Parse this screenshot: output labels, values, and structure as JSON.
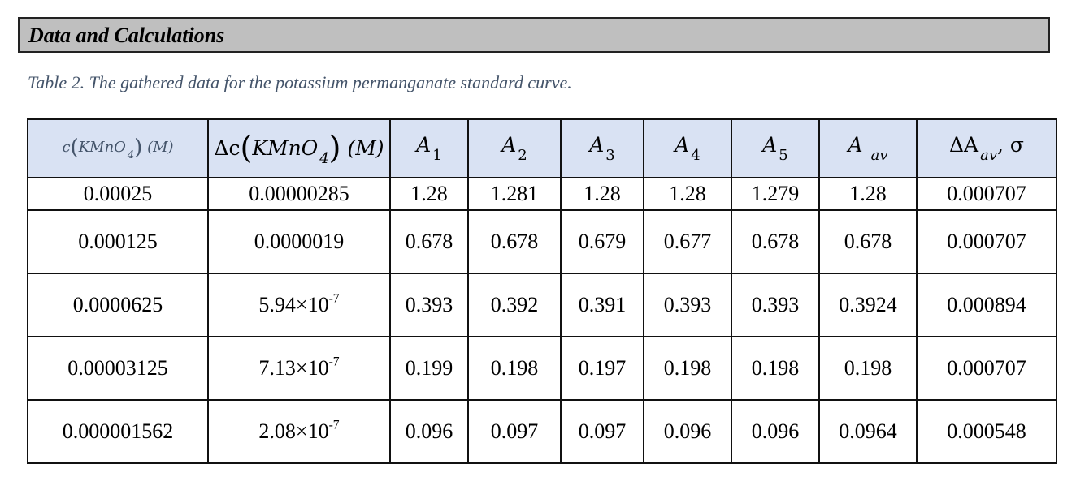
{
  "section": {
    "title": "Data and Calculations"
  },
  "caption": "Table 2. The gathered data for the potassium permanganate standard curve.",
  "table": {
    "headers": {
      "c_prefix": "c",
      "c_formula": "KMnO",
      "c_sub": "4",
      "c_unit": "(M)",
      "dc_prefix": "Δc",
      "dc_formula": "KMnO",
      "dc_sub": "4",
      "dc_unit": "(M)",
      "a_letter": "A",
      "a_subs": [
        "1",
        "2",
        "3",
        "4",
        "5"
      ],
      "aav_sub": "av",
      "daav_prefix": "ΔA",
      "daav_sub": "av",
      "daav_suffix": ", σ"
    },
    "rows": [
      {
        "c": "0.00025",
        "dc": "0.00000285",
        "dc_exp": "",
        "a1": "1.28",
        "a2": "1.281",
        "a3": "1.28",
        "a4": "1.28",
        "a5": "1.279",
        "aav": "1.28",
        "daav": "0.000707"
      },
      {
        "c": "0.000125",
        "dc": "0.0000019",
        "dc_exp": "",
        "a1": "0.678",
        "a2": "0.678",
        "a3": "0.679",
        "a4": "0.677",
        "a5": "0.678",
        "aav": "0.678",
        "daav": "0.000707"
      },
      {
        "c": "0.0000625",
        "dc": "5.94×10",
        "dc_exp": "-7",
        "a1": "0.393",
        "a2": "0.392",
        "a3": "0.391",
        "a4": "0.393",
        "a5": "0.393",
        "aav": "0.3924",
        "daav": "0.000894"
      },
      {
        "c": "0.00003125",
        "dc": "7.13×10",
        "dc_exp": "-7",
        "a1": "0.199",
        "a2": "0.198",
        "a3": "0.197",
        "a4": "0.198",
        "a5": "0.198",
        "aav": "0.198",
        "daav": "0.000707"
      },
      {
        "c": "0.000001562",
        "dc": "2.08×10",
        "dc_exp": "-7",
        "a1": "0.096",
        "a2": "0.097",
        "a3": "0.097",
        "a4": "0.096",
        "a5": "0.096",
        "aav": "0.0964",
        "daav": "0.000548"
      }
    ]
  }
}
